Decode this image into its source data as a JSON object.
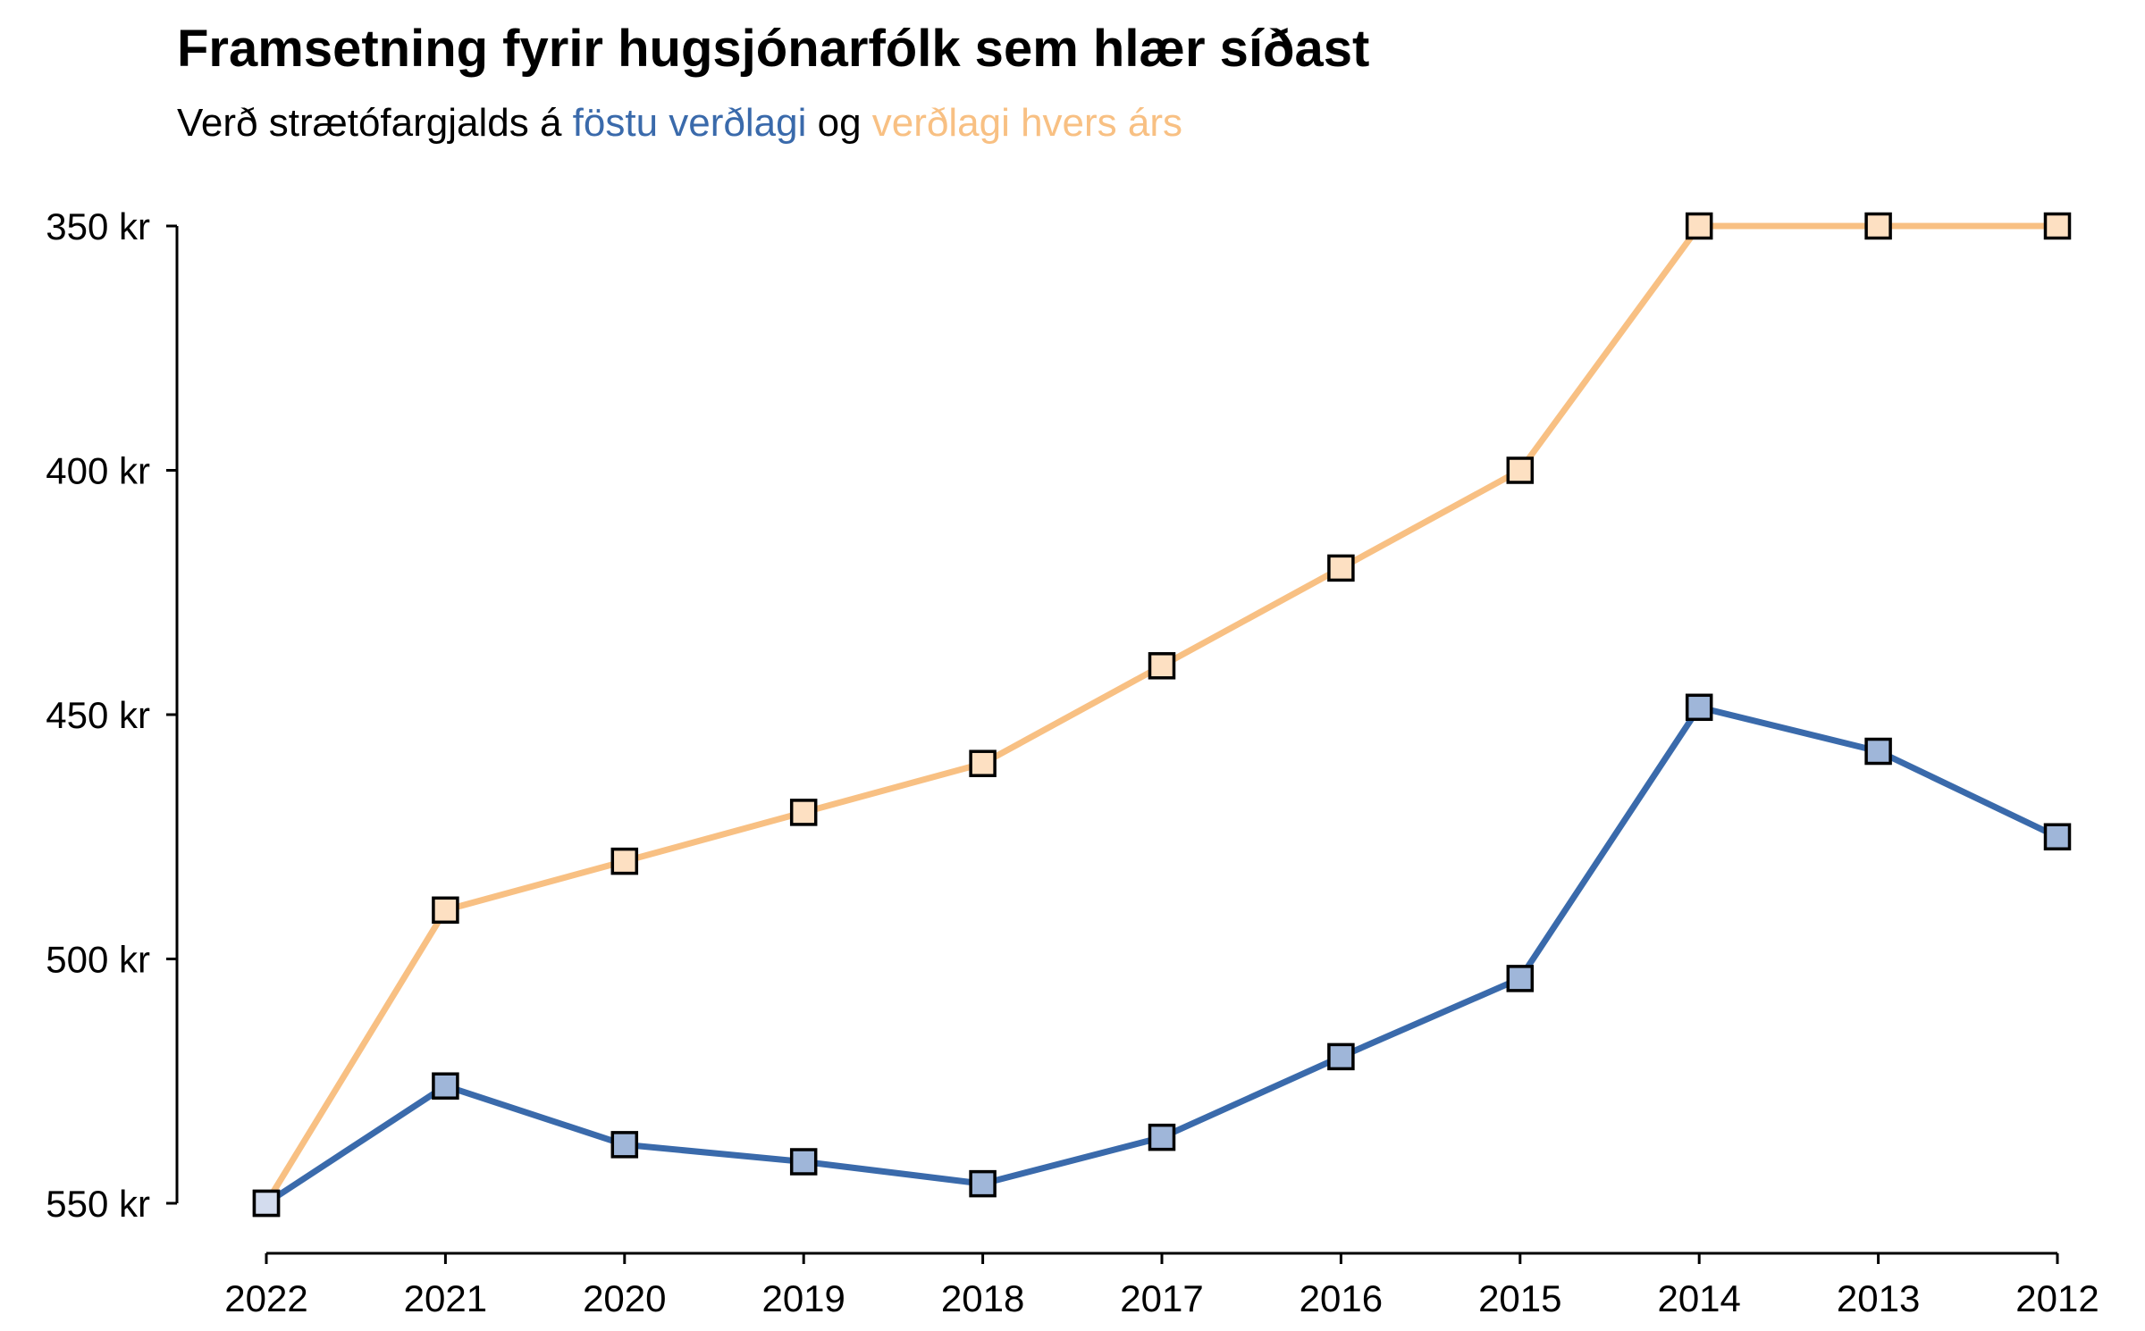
{
  "chart_data": {
    "type": "line",
    "title": "Framsetning fyrir hugsjónarfólk sem hlær síðast",
    "subtitle": {
      "prefix": "Verð strætófargjalds á ",
      "series1_phrase": "föstu verðlagi",
      "middle": " og ",
      "series2_phrase": "verðlagi hvers árs"
    },
    "xlabel": "",
    "ylabel": "",
    "categories": [
      "2022",
      "2021",
      "2020",
      "2019",
      "2018",
      "2017",
      "2016",
      "2015",
      "2014",
      "2013",
      "2012"
    ],
    "y_axis": {
      "inverted": true,
      "range": [
        350,
        550
      ],
      "ticks": [
        350,
        400,
        450,
        500,
        550
      ],
      "tick_labels": [
        "350 kr",
        "400 kr",
        "450 kr",
        "500 kr",
        "550 kr"
      ]
    },
    "grid": false,
    "legend": "none (series named in subtitle)",
    "series": [
      {
        "key": "fixed",
        "color": "#3a6aab",
        "marker_fill": "#9fb6d9",
        "first_marker_fill": "#d3dcee",
        "values": [
          550,
          526,
          538,
          541.5,
          546,
          536.5,
          520,
          504,
          448.5,
          457.5,
          475
        ]
      },
      {
        "key": "nominal",
        "color": "#f8c083",
        "marker_fill": "#fde0c2",
        "first_marker_fill": "#fde0c2",
        "values": [
          550,
          490,
          480,
          470,
          460,
          440,
          420,
          400,
          350,
          350,
          350
        ]
      }
    ]
  }
}
